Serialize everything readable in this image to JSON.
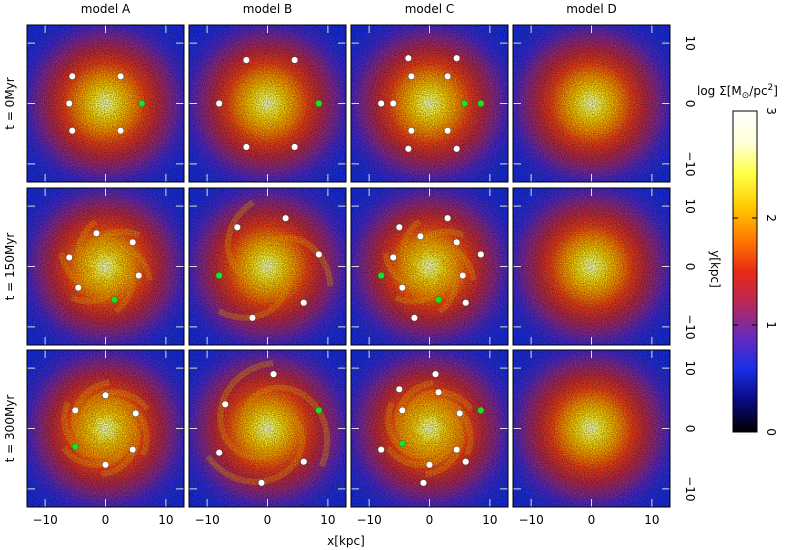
{
  "chart_data": {
    "type": "heatmap",
    "columns": [
      "model A",
      "model B",
      "model C",
      "model D"
    ],
    "rows": [
      "t = 0Myr",
      "t = 150Myr",
      "t = 300Myr"
    ],
    "xlabel": "x[kpc]",
    "ylabel": "y[kpc]",
    "xlim": [
      -13,
      13
    ],
    "ylim": [
      -13,
      13
    ],
    "xticks": [
      -10,
      0,
      10
    ],
    "yticks": [
      -10,
      0,
      10
    ],
    "xtick_labels": [
      "−10",
      "0",
      "10"
    ],
    "ytick_labels": [
      "−10",
      "0",
      "10"
    ],
    "colorbar": {
      "label": "log Σ[M⊙/pc²]",
      "label_main": "log Σ[M",
      "label_sub": "⊙",
      "label_mid": "/pc",
      "label_sup": "2",
      "label_end": "]",
      "range": [
        0,
        3
      ],
      "ticks": [
        0,
        1,
        2,
        3
      ],
      "tick_labels": [
        "0",
        "1",
        "2",
        "3"
      ],
      "colors": [
        "#000000",
        "#0a0a80",
        "#1a2ee8",
        "#6a2ab8",
        "#b8285a",
        "#e82a14",
        "#ff7a00",
        "#ffc800",
        "#ffff40",
        "#ffffd8",
        "#ffffff"
      ]
    },
    "colors": {
      "marker_white": "#ffffff",
      "marker_green": "#22dd22",
      "tick_white": "#dcdcdc"
    },
    "markers": [
      [
        {
          "white": [
            [
              -5.5,
              4.5
            ],
            [
              2.5,
              4.5
            ],
            [
              -5.5,
              -4.5
            ],
            [
              2.5,
              -4.5
            ],
            [
              -6,
              0
            ]
          ],
          "green": [
            [
              6,
              0
            ]
          ]
        },
        {
          "white": [
            [
              -3.5,
              7.2
            ],
            [
              4.5,
              7.2
            ],
            [
              -3.5,
              -7.2
            ],
            [
              4.5,
              -7.2
            ],
            [
              -8,
              0
            ]
          ],
          "green": [
            [
              8.5,
              0
            ]
          ]
        },
        {
          "white": [
            [
              -3,
              4.5
            ],
            [
              3,
              4.5
            ],
            [
              -3,
              -4.5
            ],
            [
              3,
              -4.5
            ],
            [
              -6,
              0
            ],
            [
              -3.5,
              7.5
            ],
            [
              4.5,
              7.5
            ],
            [
              -3.5,
              -7.5
            ],
            [
              4.5,
              -7.5
            ],
            [
              -8,
              0
            ]
          ],
          "green": [
            [
              5.8,
              0
            ],
            [
              8.5,
              0
            ]
          ]
        },
        {
          "white": [],
          "green": []
        }
      ],
      [
        {
          "white": [
            [
              -1.5,
              5.5
            ],
            [
              4.5,
              4
            ],
            [
              5.5,
              -1.5
            ],
            [
              -4.5,
              -3.5
            ],
            [
              -6,
              1.5
            ]
          ],
          "green": [
            [
              1.5,
              -5.5
            ]
          ]
        },
        {
          "white": [
            [
              -5,
              6.5
            ],
            [
              3,
              8
            ],
            [
              8.5,
              2
            ],
            [
              6,
              -6
            ],
            [
              -2.5,
              -8.5
            ]
          ],
          "green": [
            [
              -8,
              -1.5
            ]
          ]
        },
        {
          "white": [
            [
              -1.5,
              5
            ],
            [
              4.5,
              4
            ],
            [
              5.5,
              -1.5
            ],
            [
              -4.5,
              -3.5
            ],
            [
              -6,
              1.5
            ],
            [
              -5,
              6.5
            ],
            [
              3,
              8
            ],
            [
              8.5,
              2
            ],
            [
              6,
              -6
            ],
            [
              -2.5,
              -8.5
            ]
          ],
          "green": [
            [
              1.5,
              -5.5
            ],
            [
              -8,
              -1.5
            ]
          ]
        },
        {
          "white": [],
          "green": []
        }
      ],
      [
        {
          "white": [
            [
              0,
              5.5
            ],
            [
              5,
              2.5
            ],
            [
              4.5,
              -3.5
            ],
            [
              0,
              -6
            ],
            [
              -5,
              3
            ]
          ],
          "green": [
            [
              -5,
              -3
            ]
          ]
        },
        {
          "white": [
            [
              1,
              9
            ],
            [
              -7,
              4
            ],
            [
              6,
              -5.5
            ],
            [
              -1,
              -9
            ],
            [
              -8,
              -4
            ]
          ],
          "green": [
            [
              8.5,
              3
            ]
          ]
        },
        {
          "white": [
            [
              1.5,
              6
            ],
            [
              5,
              2.5
            ],
            [
              4.5,
              -3.5
            ],
            [
              0,
              -6
            ],
            [
              -4.5,
              3
            ],
            [
              1,
              9
            ],
            [
              -5,
              6.5
            ],
            [
              6,
              -5.5
            ],
            [
              -1,
              -9
            ],
            [
              -8,
              -3.5
            ]
          ],
          "green": [
            [
              -4.5,
              -2.5
            ],
            [
              8.5,
              3
            ]
          ]
        },
        {
          "white": [],
          "green": []
        }
      ]
    ]
  }
}
